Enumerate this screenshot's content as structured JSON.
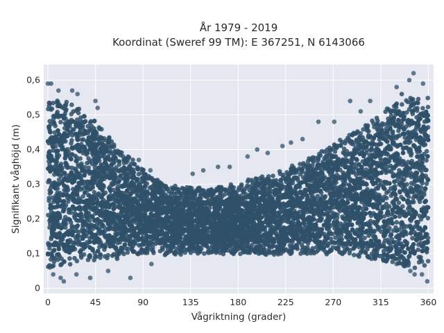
{
  "chart_data": {
    "type": "scatter",
    "title_line1": "År 1979 - 2019",
    "title_line2": "Koordinat (Sweref 99 TM): E 367251, N 6143066",
    "xlabel": "Vågriktning (grader)",
    "ylabel": "Signifikant våghöjd (m)",
    "xlim": [
      -4,
      365
    ],
    "ylim": [
      -0.015,
      0.645
    ],
    "x_ticks": [
      0,
      45,
      90,
      135,
      180,
      225,
      270,
      315,
      360
    ],
    "x_tick_labels": [
      "0",
      "45",
      "90",
      "135",
      "180",
      "225",
      "270",
      "315",
      "360"
    ],
    "y_ticks": [
      0,
      0.1,
      0.2,
      0.3,
      0.4,
      0.5,
      0.6
    ],
    "y_tick_labels": [
      "0",
      "0,1",
      "0,2",
      "0,3",
      "0,4",
      "0,5",
      "0,6"
    ],
    "grid": true,
    "marker_color": "#2f5069",
    "plot_background": "#e5e8f0",
    "envelope": {
      "x": [
        0,
        20,
        45,
        70,
        90,
        110,
        135,
        160,
        180,
        200,
        225,
        250,
        270,
        290,
        315,
        335,
        360
      ],
      "y_min": [
        0.06,
        0.07,
        0.08,
        0.09,
        0.1,
        0.1,
        0.1,
        0.1,
        0.1,
        0.1,
        0.1,
        0.1,
        0.1,
        0.09,
        0.08,
        0.06,
        0.06
      ],
      "y_max": [
        0.55,
        0.54,
        0.48,
        0.4,
        0.34,
        0.3,
        0.29,
        0.29,
        0.3,
        0.32,
        0.34,
        0.38,
        0.42,
        0.45,
        0.5,
        0.56,
        0.55
      ]
    },
    "outlier_points": [
      {
        "x": 0,
        "y": 0.59
      },
      {
        "x": 3,
        "y": 0.59
      },
      {
        "x": 10,
        "y": 0.57
      },
      {
        "x": 23,
        "y": 0.57
      },
      {
        "x": 28,
        "y": 0.56
      },
      {
        "x": 45,
        "y": 0.54
      },
      {
        "x": 47,
        "y": 0.52
      },
      {
        "x": 86,
        "y": 0.37
      },
      {
        "x": 97,
        "y": 0.34
      },
      {
        "x": 137,
        "y": 0.33
      },
      {
        "x": 147,
        "y": 0.34
      },
      {
        "x": 161,
        "y": 0.35
      },
      {
        "x": 172,
        "y": 0.35
      },
      {
        "x": 189,
        "y": 0.38
      },
      {
        "x": 198,
        "y": 0.4
      },
      {
        "x": 208,
        "y": 0.39
      },
      {
        "x": 222,
        "y": 0.41
      },
      {
        "x": 230,
        "y": 0.42
      },
      {
        "x": 241,
        "y": 0.43
      },
      {
        "x": 256,
        "y": 0.48
      },
      {
        "x": 271,
        "y": 0.48
      },
      {
        "x": 286,
        "y": 0.54
      },
      {
        "x": 296,
        "y": 0.51
      },
      {
        "x": 305,
        "y": 0.54
      },
      {
        "x": 330,
        "y": 0.58
      },
      {
        "x": 342,
        "y": 0.6
      },
      {
        "x": 346,
        "y": 0.62
      },
      {
        "x": 355,
        "y": 0.59
      },
      {
        "x": 2,
        "y": 0.06
      },
      {
        "x": 5,
        "y": 0.04
      },
      {
        "x": 12,
        "y": 0.03
      },
      {
        "x": 15,
        "y": 0.02
      },
      {
        "x": 27,
        "y": 0.04
      },
      {
        "x": 40,
        "y": 0.03
      },
      {
        "x": 57,
        "y": 0.05
      },
      {
        "x": 78,
        "y": 0.03
      },
      {
        "x": 98,
        "y": 0.07
      },
      {
        "x": 330,
        "y": 0.07
      },
      {
        "x": 337,
        "y": 0.08
      },
      {
        "x": 343,
        "y": 0.05
      },
      {
        "x": 347,
        "y": 0.04
      },
      {
        "x": 354,
        "y": 0.04
      },
      {
        "x": 359,
        "y": 0.02
      }
    ]
  }
}
